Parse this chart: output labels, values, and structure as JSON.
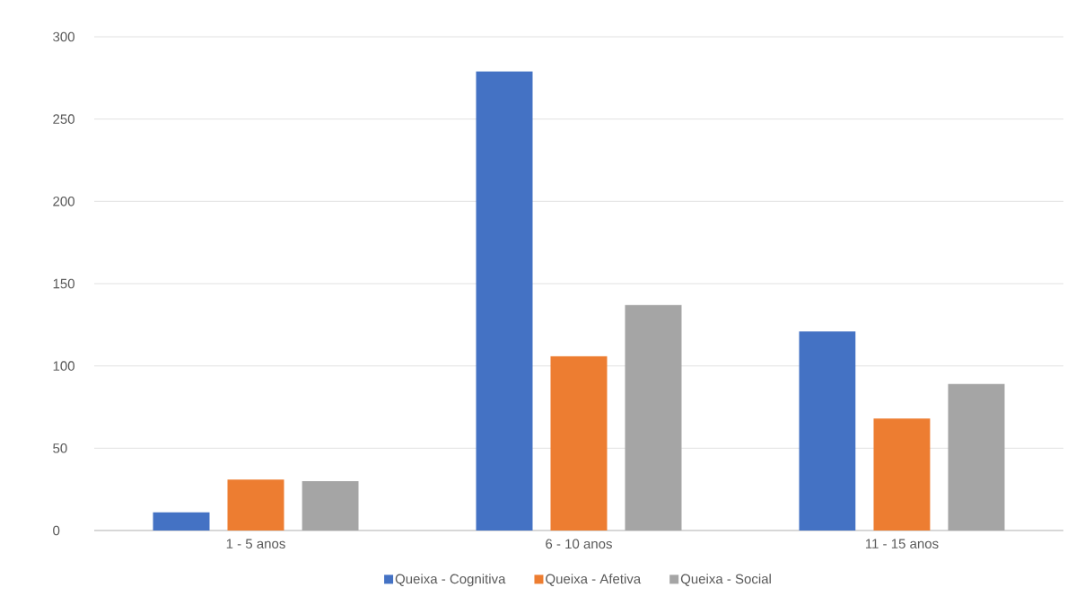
{
  "chart_data": {
    "type": "bar",
    "categories": [
      "1 - 5 anos",
      "6 - 10 anos",
      "11 - 15 anos"
    ],
    "series": [
      {
        "name": "Queixa - Cognitiva",
        "color": "#4472c4",
        "values": [
          11,
          279,
          121
        ]
      },
      {
        "name": "Queixa - Afetiva",
        "color": "#ed7d31",
        "values": [
          31,
          106,
          68
        ]
      },
      {
        "name": "Queixa - Social",
        "color": "#a5a5a5",
        "values": [
          30,
          137,
          89
        ]
      }
    ],
    "ylim": [
      0,
      300
    ],
    "yticks": [
      0,
      50,
      100,
      150,
      200,
      250,
      300
    ],
    "grid": "y",
    "legend": "bottom"
  }
}
